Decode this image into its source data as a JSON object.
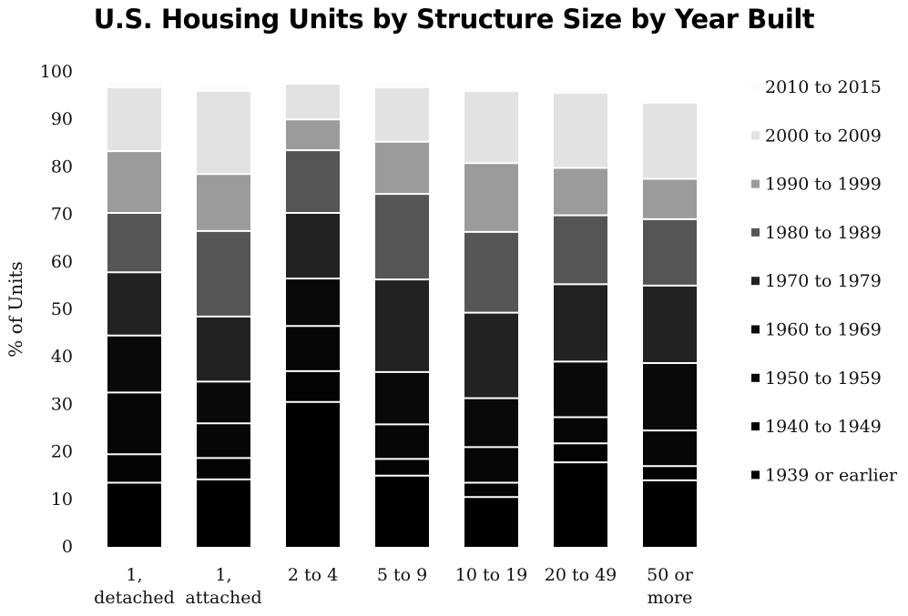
{
  "chart_data": {
    "type": "bar",
    "stacked": true,
    "title": "U.S. Housing Units by Structure Size by Year Built",
    "xlabel": "",
    "ylabel": "% of Units",
    "ylim": [
      0,
      100
    ],
    "yticks": [
      0,
      10,
      20,
      30,
      40,
      50,
      60,
      70,
      80,
      90,
      100
    ],
    "grid": false,
    "legend_position": "right",
    "categories": [
      [
        "1,",
        "detached"
      ],
      [
        "1,",
        "attached"
      ],
      [
        "2 to 4"
      ],
      [
        "5 to 9"
      ],
      [
        "10 to 19"
      ],
      [
        "20 to 49"
      ],
      [
        "50 or",
        "more"
      ]
    ],
    "series": [
      {
        "name": "1939 or earlier",
        "color": "#000000",
        "values": [
          13.5,
          14.2,
          30.5,
          15.0,
          10.5,
          17.8,
          14.0
        ]
      },
      {
        "name": "1940 to 1949",
        "color": "#040404",
        "values": [
          6.0,
          4.5,
          6.5,
          3.5,
          3.0,
          4.0,
          3.0
        ]
      },
      {
        "name": "1950 to 1959",
        "color": "#060606",
        "values": [
          13.0,
          7.3,
          9.5,
          7.3,
          7.5,
          5.5,
          7.5
        ]
      },
      {
        "name": "1960 to 1969",
        "color": "#090909",
        "values": [
          12.0,
          8.8,
          10.0,
          11.0,
          10.3,
          11.7,
          14.2
        ]
      },
      {
        "name": "1970 to 1979",
        "color": "#222222",
        "values": [
          13.3,
          13.7,
          13.8,
          19.5,
          18.0,
          16.3,
          16.3
        ]
      },
      {
        "name": "1980 to 1989",
        "color": "#555555",
        "values": [
          12.5,
          18.0,
          13.2,
          18.0,
          17.0,
          14.5,
          14.0
        ]
      },
      {
        "name": "1990 to 1999",
        "color": "#9b9b9b",
        "values": [
          13.0,
          12.0,
          6.5,
          11.0,
          14.5,
          10.0,
          8.5
        ]
      },
      {
        "name": "2000 to 2009",
        "color": "#e2e2e2",
        "values": [
          13.5,
          17.5,
          7.5,
          11.5,
          15.2,
          15.8,
          16.0
        ]
      },
      {
        "name": "2010 to 2015",
        "color": "#fbfbfb",
        "values": [
          1.0,
          0.8,
          0.5,
          0.8,
          0.5,
          0.5,
          0.5
        ]
      }
    ]
  }
}
